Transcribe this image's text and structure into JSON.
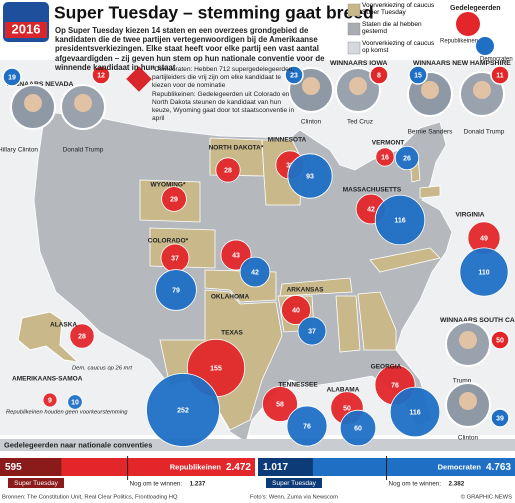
{
  "header": {
    "badge": "2016",
    "title": "Super Tuesday – stemming gaat breed",
    "intro": "Op Super Tuesday kiezen 14 staten en een overzees grondgebied de kandidaten die de twee partijen vertegenwoordigen bij de Amerikaanse presidentsverkiezingen. Elke staat heeft voor elke partij een vast aantal afgevaardigden – zij geven hun stem op hun nationale conventie voor de winnende kandidaat in hun staat"
  },
  "legend": {
    "items": [
      "Voorverkiezing of caucus Super Tuesday",
      "Staten die al hebben gestemd",
      "Voorverkiezing of caucus op komst"
    ],
    "delegates_title": "Gedelegeerden",
    "republicans": "Republikeinen",
    "democrats": "Democraten"
  },
  "notes": [
    "*Democraten: Hebben 712 supergedelegeerden, partijleiders die vrij zijn om elke kandidaat te kiezen voor de nominatie",
    "Republikeinen: Gedelegeerden uit Colorado en North Dakota steunen de kandidaat van hun keuze, Wyoming gaat door tot staatsconventie in april"
  ],
  "winners": [
    {
      "title": "WINNAARS NEVADA",
      "candidates": [
        {
          "name": "Hillary Clinton",
          "party": "dem",
          "delegates": 19
        },
        {
          "name": "Donald Trump",
          "party": "rep",
          "delegates": 12
        }
      ]
    },
    {
      "title": "WINNAARS IOWA",
      "candidates": [
        {
          "name": "Clinton",
          "party": "dem",
          "delegates": 23
        },
        {
          "name": "Ted Cruz",
          "party": "rep",
          "delegates": 8
        }
      ]
    },
    {
      "title": "WINNAARS NEW HAMPSHIRE",
      "candidates": [
        {
          "name": "Bernie Sanders",
          "party": "dem",
          "delegates": 15
        },
        {
          "name": "Donald Trump",
          "party": "rep",
          "delegates": 11
        }
      ]
    },
    {
      "title": "WINNAARS SOUTH CAROLINA",
      "candidates": [
        {
          "name": "Trump",
          "party": "rep",
          "delegates": 50
        },
        {
          "name": "Clinton",
          "party": "dem",
          "delegates": 39
        }
      ]
    }
  ],
  "states": [
    {
      "name": "NORTH DAKOTA*",
      "rep": 28
    },
    {
      "name": "MINNESOTA",
      "rep": 38,
      "dem": 93
    },
    {
      "name": "WYOMING*",
      "rep": 29
    },
    {
      "name": "COLORADO*",
      "rep": 37,
      "dem": 79
    },
    {
      "name": "OKLAHOMA",
      "rep": 43,
      "dem": 42
    },
    {
      "name": "ARKANSAS",
      "rep": 40,
      "dem": 37
    },
    {
      "name": "TEXAS",
      "rep": 155,
      "dem": 252
    },
    {
      "name": "TENNESSEE",
      "rep": 58,
      "dem": 76
    },
    {
      "name": "ALABAMA",
      "rep": 50,
      "dem": 60
    },
    {
      "name": "GEORGIA",
      "rep": 76,
      "dem": 116
    },
    {
      "name": "VIRGINIA",
      "rep": 49,
      "dem": 110
    },
    {
      "name": "MASSACHUSETTS",
      "rep": 42,
      "dem": 116
    },
    {
      "name": "VERMONT",
      "rep": 16,
      "dem": 26
    },
    {
      "name": "ALASKA",
      "rep": 28,
      "note": "Dem. caucus op 26 mrt"
    },
    {
      "name": "AMERIKAANS-SAMOA",
      "rep": 9,
      "dem": 10,
      "note": "Republikeinen houden geen voorkeurstemming"
    }
  ],
  "totals": {
    "title": "Gedelegeerden naar nationale conventies",
    "super_tuesday_label": "Super Tuesday",
    "to_win_label": "Nog om te winnen:",
    "republicans": {
      "name": "Republikeinen",
      "super_tuesday": 595,
      "total": {
        "value": 2472,
        "label": "2.472"
      },
      "to_win": {
        "value": 1237,
        "label": "1.237"
      }
    },
    "democrats": {
      "name": "Democraten",
      "super_tuesday": {
        "value": 1017,
        "label": "1.017"
      },
      "total": {
        "value": 4763,
        "label": "4.763"
      },
      "to_win": {
        "value": 2382,
        "label": "2.382"
      }
    }
  },
  "footer": {
    "sources": "Bronnen: The Constitution Unit, Real Clear Politics, Frontloading HQ",
    "photos": "Foto's: Wenn, Zuma via Newscom",
    "copyright": "© GRAPHIC NEWS"
  }
}
